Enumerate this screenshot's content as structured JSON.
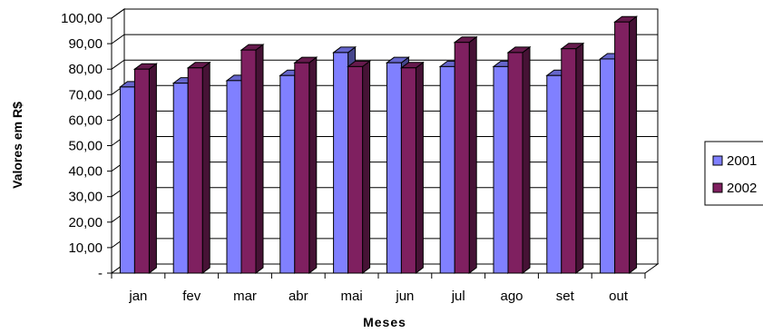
{
  "chart_data": {
    "type": "bar",
    "title": "",
    "xlabel": "Meses",
    "ylabel": "Valores em R$",
    "categories": [
      "jan",
      "fev",
      "mar",
      "abr",
      "mai",
      "jun",
      "jul",
      "ago",
      "set",
      "out"
    ],
    "series": [
      {
        "name": "2001",
        "color": "#8080ff",
        "values": [
          73,
          74.5,
          75.5,
          77.5,
          86.5,
          82.5,
          81,
          81,
          77.5,
          84
        ]
      },
      {
        "name": "2002",
        "color": "#7f2060",
        "values": [
          80,
          80.5,
          87.5,
          82.5,
          81,
          80.5,
          90.5,
          86.5,
          88,
          98.5
        ]
      }
    ],
    "ylim": [
      0,
      100
    ],
    "y_ticks": [
      "-",
      "10,00",
      "20,00",
      "30,00",
      "40,00",
      "50,00",
      "60,00",
      "70,00",
      "80,00",
      "90,00",
      "100,00"
    ],
    "grid": true,
    "legend": "right",
    "style": "3d-clustered-column"
  }
}
